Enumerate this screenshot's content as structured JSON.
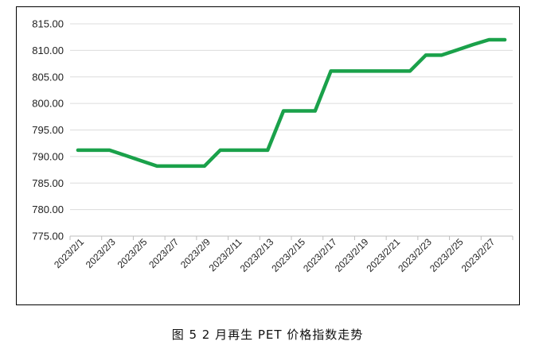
{
  "caption": "图 5  2 月再生 PET 价格指数走势",
  "chart_data": {
    "type": "line",
    "title": "",
    "xlabel": "",
    "ylabel": "",
    "ylim": [
      775,
      815
    ],
    "y_ticks": [
      "775.00",
      "780.00",
      "785.00",
      "790.00",
      "795.00",
      "800.00",
      "805.00",
      "810.00",
      "815.00"
    ],
    "grid": "horizontal",
    "legend": "none",
    "line_color": "#1aa14a",
    "x_tick_labels": [
      "2023/2/1",
      "2023/2/3",
      "2023/2/5",
      "2023/2/7",
      "2023/2/9",
      "2023/2/11",
      "2023/2/13",
      "2023/2/15",
      "2023/2/17",
      "2023/2/19",
      "2023/2/21",
      "2023/2/23",
      "2023/2/25",
      "2023/2/27"
    ],
    "x": [
      "2023/2/1",
      "2023/2/2",
      "2023/2/3",
      "2023/2/4",
      "2023/2/5",
      "2023/2/6",
      "2023/2/7",
      "2023/2/8",
      "2023/2/9",
      "2023/2/10",
      "2023/2/11",
      "2023/2/12",
      "2023/2/13",
      "2023/2/14",
      "2023/2/15",
      "2023/2/16",
      "2023/2/17",
      "2023/2/18",
      "2023/2/19",
      "2023/2/20",
      "2023/2/21",
      "2023/2/22",
      "2023/2/23",
      "2023/2/24",
      "2023/2/25",
      "2023/2/26",
      "2023/2/27",
      "2023/2/28"
    ],
    "series": [
      {
        "values": [
          791.2,
          791.2,
          791.2,
          790.2,
          789.2,
          788.2,
          788.2,
          788.2,
          788.2,
          791.2,
          791.2,
          791.2,
          791.2,
          798.6,
          798.6,
          798.6,
          806.1,
          806.1,
          806.1,
          806.1,
          806.1,
          806.1,
          809.1,
          809.1,
          810.1,
          811.1,
          812.0,
          812.0
        ]
      }
    ]
  }
}
